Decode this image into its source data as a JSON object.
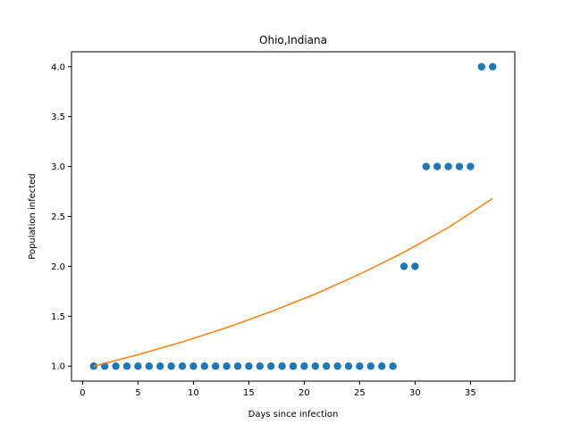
{
  "chart_data": {
    "type": "scatter",
    "title": "Ohio,Indiana",
    "xlabel": "Days since infection",
    "ylabel": "Population infected",
    "xlim": [
      -1,
      39
    ],
    "ylim": [
      0.85,
      4.15
    ],
    "xticks": [
      0,
      5,
      10,
      15,
      20,
      25,
      30,
      35
    ],
    "yticks": [
      1.0,
      1.5,
      2.0,
      2.5,
      3.0,
      3.5,
      4.0
    ],
    "xtick_labels": [
      "0",
      "5",
      "10",
      "15",
      "20",
      "25",
      "30",
      "35"
    ],
    "ytick_labels": [
      "1.0",
      "1.5",
      "2.0",
      "2.5",
      "3.0",
      "3.5",
      "4.0"
    ],
    "grid": false,
    "series": [
      {
        "kind": "scatter",
        "color": "#1f77b4",
        "x": [
          1,
          2,
          3,
          4,
          5,
          6,
          7,
          8,
          9,
          10,
          11,
          12,
          13,
          14,
          15,
          16,
          17,
          18,
          19,
          20,
          21,
          22,
          23,
          24,
          25,
          26,
          27,
          28,
          29,
          30,
          31,
          32,
          33,
          34,
          35,
          36,
          37
        ],
        "y": [
          1,
          1,
          1,
          1,
          1,
          1,
          1,
          1,
          1,
          1,
          1,
          1,
          1,
          1,
          1,
          1,
          1,
          1,
          1,
          1,
          1,
          1,
          1,
          1,
          1,
          1,
          1,
          1,
          2,
          2,
          3,
          3,
          3,
          3,
          3,
          4,
          4
        ]
      },
      {
        "kind": "line",
        "color": "#ff7f0e",
        "x": [
          1,
          5,
          9,
          13,
          17,
          21,
          25,
          29,
          33,
          37
        ],
        "y": [
          1.0,
          1.115,
          1.243,
          1.386,
          1.546,
          1.723,
          1.921,
          2.142,
          2.389,
          2.68
        ]
      }
    ]
  }
}
